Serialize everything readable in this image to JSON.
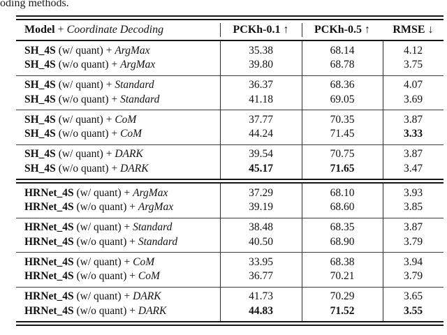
{
  "caption_fragment": "oding methods.",
  "table": {
    "header": {
      "model_bold": "Model",
      "model_plus": "+",
      "model_italic": "Coordinate Decoding",
      "col1": {
        "text": "PCKh-0.1",
        "arrow": "↑"
      },
      "col2": {
        "text": "PCKh-0.5",
        "arrow": "↑"
      },
      "col3": {
        "text": "RMSE",
        "arrow": "↓"
      }
    },
    "groups": [
      {
        "rows": [
          {
            "model": "SH_4S",
            "config": "(w/ quant) +",
            "decoder": "ArgMax",
            "v1": "35.38",
            "v2": "68.14",
            "v3": "4.12"
          },
          {
            "model": "SH_4S",
            "config": "(w/o quant) +",
            "decoder": "ArgMax",
            "v1": "39.80",
            "v2": "68.78",
            "v3": "3.75"
          }
        ]
      },
      {
        "rows": [
          {
            "model": "SH_4S",
            "config": "(w/ quant) +",
            "decoder": "Standard",
            "v1": "36.37",
            "v2": "68.36",
            "v3": "4.07"
          },
          {
            "model": "SH_4S",
            "config": "(w/o quant) +",
            "decoder": "Standard",
            "v1": "41.18",
            "v2": "69.05",
            "v3": "3.69"
          }
        ]
      },
      {
        "rows": [
          {
            "model": "SH_4S",
            "config": "(w/ quant) +",
            "decoder": "CoM",
            "v1": "37.77",
            "v2": "70.35",
            "v3": "3.87"
          },
          {
            "model": "SH_4S",
            "config": "(w/o quant) +",
            "decoder": "CoM",
            "v1": "44.24",
            "v2": "71.45",
            "v3": "3.33"
          }
        ]
      },
      {
        "rows": [
          {
            "model": "SH_4S",
            "config": "(w/ quant) +",
            "decoder": "DARK",
            "v1": "39.54",
            "v2": "70.75",
            "v3": "3.87"
          },
          {
            "model": "SH_4S",
            "config": "(w/o quant) +",
            "decoder": "DARK",
            "v1": "45.17",
            "v2": "71.65",
            "v3": "3.47"
          }
        ]
      },
      {
        "rows": [
          {
            "model": "HRNet_4S",
            "config": "(w/ quant) +",
            "decoder": "ArgMax",
            "v1": "37.29",
            "v2": "68.10",
            "v3": "3.93"
          },
          {
            "model": "HRNet_4S",
            "config": "(w/o quant) +",
            "decoder": "ArgMax",
            "v1": "39.19",
            "v2": "68.60",
            "v3": "3.85"
          }
        ]
      },
      {
        "rows": [
          {
            "model": "HRNet_4S",
            "config": "(w/ quant) +",
            "decoder": "Standard",
            "v1": "38.48",
            "v2": "68.35",
            "v3": "3.87"
          },
          {
            "model": "HRNet_4S",
            "config": "(w/o quant) +",
            "decoder": "Standard",
            "v1": "40.50",
            "v2": "68.90",
            "v3": "3.79"
          }
        ]
      },
      {
        "rows": [
          {
            "model": "HRNet_4S",
            "config": "(w/ quant) +",
            "decoder": "CoM",
            "v1": "33.95",
            "v2": "68.38",
            "v3": "3.94"
          },
          {
            "model": "HRNet_4S",
            "config": "(w/o quant) +",
            "decoder": "CoM",
            "v1": "36.77",
            "v2": "70.21",
            "v3": "3.79"
          }
        ]
      },
      {
        "rows": [
          {
            "model": "HRNet_4S",
            "config": "(w/ quant) +",
            "decoder": "DARK",
            "v1": "41.73",
            "v2": "70.29",
            "v3": "3.65"
          },
          {
            "model": "HRNet_4S",
            "config": "(w/o quant) +",
            "decoder": "DARK",
            "v1": "44.83",
            "v2": "71.52",
            "v3": "3.55"
          }
        ]
      }
    ]
  }
}
